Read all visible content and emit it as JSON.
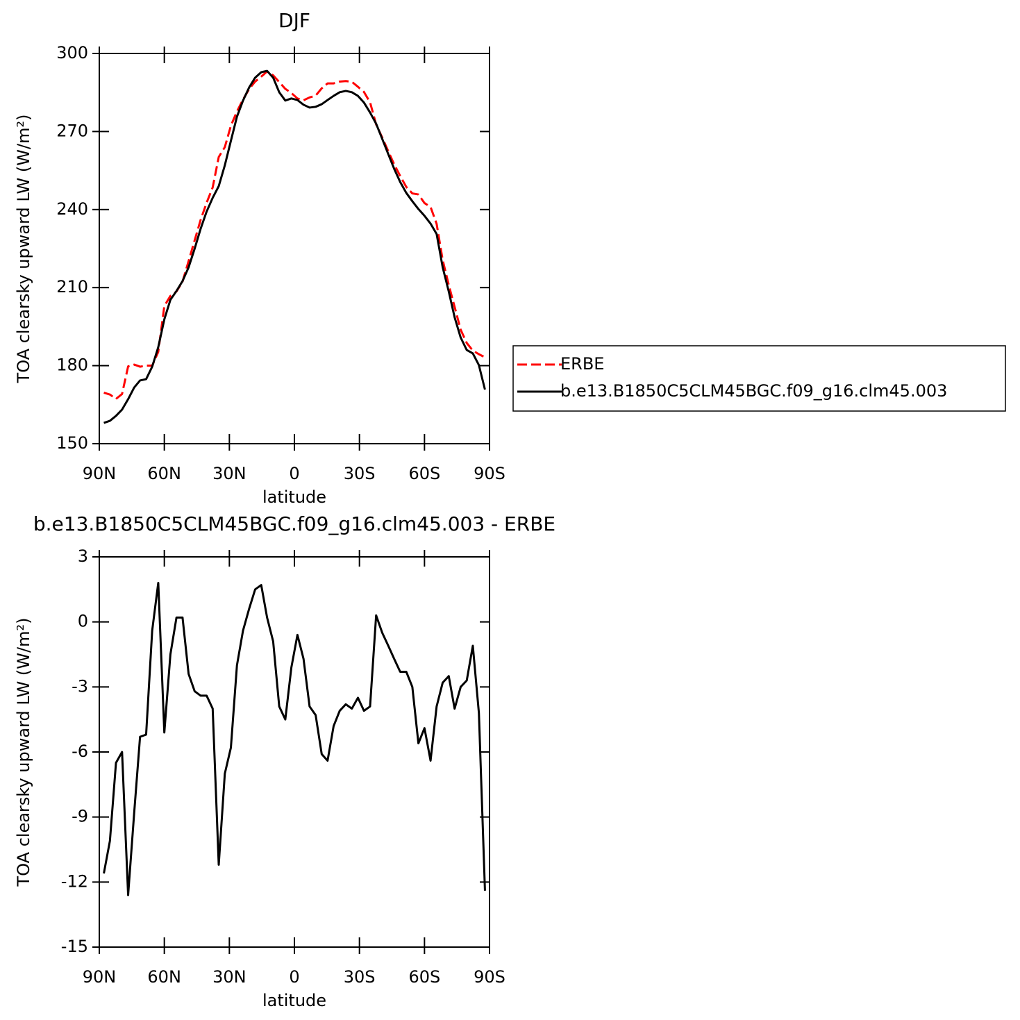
{
  "chart_data": [
    {
      "type": "line",
      "title": "DJF",
      "xlabel": "latitude",
      "ylabel": "TOA clearsky upward LW (W/m²)",
      "x": [
        87.9,
        85.1,
        82.3,
        79.5,
        76.7,
        73.9,
        71.2,
        68.4,
        65.6,
        62.8,
        60.0,
        57.2,
        54.4,
        51.6,
        48.8,
        46.0,
        43.3,
        40.5,
        37.7,
        34.9,
        32.1,
        29.3,
        26.5,
        23.7,
        20.9,
        18.1,
        15.3,
        12.6,
        9.8,
        7.0,
        4.2,
        1.4,
        -1.4,
        -4.2,
        -7.0,
        -9.8,
        -12.6,
        -15.3,
        -18.1,
        -20.9,
        -23.7,
        -26.5,
        -29.3,
        -32.1,
        -34.9,
        -37.7,
        -40.5,
        -43.3,
        -46.0,
        -48.8,
        -51.6,
        -54.4,
        -57.2,
        -60.0,
        -62.8,
        -65.6,
        -68.4,
        -71.2,
        -73.9,
        -76.7,
        -79.5,
        -82.3,
        -85.1,
        -87.9
      ],
      "series": [
        {
          "name": "ERBE",
          "color": "#ff0000",
          "linestyle": "dashed",
          "values": [
            169.6,
            168.9,
            167.2,
            169.1,
            179.7,
            180.4,
            179.6,
            180.0,
            180.0,
            185.3,
            202.9,
            206.8,
            208.5,
            212.3,
            220.2,
            228.2,
            235.9,
            242.6,
            248.5,
            260.2,
            264.0,
            272.2,
            277.7,
            282.3,
            286.3,
            289.2,
            291.1,
            293.1,
            291.6,
            289.0,
            286.4,
            284.8,
            282.7,
            282.0,
            283.1,
            283.8,
            286.6,
            288.5,
            288.5,
            289.2,
            289.4,
            289.1,
            287.2,
            285.2,
            281.2,
            272.7,
            267.7,
            262.4,
            257.4,
            252.9,
            248.7,
            246.2,
            245.8,
            242.5,
            241.0,
            234.5,
            220.6,
            211.0,
            202.6,
            193.8,
            188.7,
            185.8,
            184.4,
            183.2
          ]
        },
        {
          "name": "b.e13.B1850C5CLM45BGC.f09_g16.clm45.003",
          "color": "#000000",
          "linestyle": "solid",
          "values": [
            158.0,
            158.8,
            160.7,
            163.1,
            167.1,
            171.6,
            174.3,
            174.8,
            179.6,
            187.1,
            197.8,
            205.3,
            208.7,
            212.5,
            217.8,
            225.0,
            232.5,
            239.2,
            244.5,
            249.0,
            257.0,
            266.4,
            275.7,
            281.9,
            286.9,
            290.7,
            292.8,
            293.3,
            290.7,
            285.1,
            281.9,
            282.7,
            282.1,
            280.3,
            279.2,
            279.5,
            280.5,
            282.1,
            283.7,
            285.1,
            285.6,
            285.1,
            283.7,
            281.1,
            277.3,
            273.0,
            267.2,
            261.3,
            255.7,
            250.6,
            246.4,
            243.2,
            240.2,
            237.6,
            234.6,
            230.6,
            217.8,
            208.5,
            198.6,
            190.8,
            186.0,
            184.7,
            180.2,
            170.8
          ]
        }
      ],
      "xlim": [
        90,
        -90
      ],
      "xticks": [
        {
          "value": 90,
          "label": "90N"
        },
        {
          "value": 60,
          "label": "60N"
        },
        {
          "value": 30,
          "label": "30N"
        },
        0,
        {
          "value": -30,
          "label": "30S"
        },
        {
          "value": -60,
          "label": "60S"
        },
        {
          "value": -90,
          "label": "90S"
        }
      ],
      "ylim": [
        150,
        300
      ],
      "yticks": [
        150,
        180,
        210,
        240,
        270,
        300
      ],
      "legend": "right"
    },
    {
      "type": "line",
      "title": "b.e13.B1850C5CLM45BGC.f09_g16.clm45.003 - ERBE",
      "xlabel": "latitude",
      "ylabel": "TOA clearsky upward LW (W/m²)",
      "x": [
        87.9,
        85.1,
        82.3,
        79.5,
        76.7,
        73.9,
        71.2,
        68.4,
        65.6,
        62.8,
        60.0,
        57.2,
        54.4,
        51.6,
        48.8,
        46.0,
        43.3,
        40.5,
        37.7,
        34.9,
        32.1,
        29.3,
        26.5,
        23.7,
        20.9,
        18.1,
        15.3,
        12.6,
        9.8,
        7.0,
        4.2,
        1.4,
        -1.4,
        -4.2,
        -7.0,
        -9.8,
        -12.6,
        -15.3,
        -18.1,
        -20.9,
        -23.7,
        -26.5,
        -29.3,
        -32.1,
        -34.9,
        -37.7,
        -40.5,
        -43.3,
        -46.0,
        -48.8,
        -51.6,
        -54.4,
        -57.2,
        -60.0,
        -62.8,
        -65.6,
        -68.4,
        -71.2,
        -73.9,
        -76.7,
        -79.5,
        -82.3,
        -85.1,
        -87.9
      ],
      "series": [
        {
          "color": "#000000",
          "linestyle": "solid",
          "values": [
            -11.6,
            -10.1,
            -6.5,
            -6.0,
            -12.6,
            -8.8,
            -5.3,
            -5.2,
            -0.4,
            1.8,
            -5.1,
            -1.5,
            0.2,
            0.2,
            -2.4,
            -3.2,
            -3.4,
            -3.4,
            -4.0,
            -11.2,
            -7.0,
            -5.8,
            -2.0,
            -0.4,
            0.6,
            1.5,
            1.7,
            0.2,
            -0.9,
            -3.9,
            -4.5,
            -2.1,
            -0.6,
            -1.7,
            -3.9,
            -4.3,
            -6.1,
            -6.4,
            -4.8,
            -4.1,
            -3.8,
            -4.0,
            -3.5,
            -4.1,
            -3.9,
            0.3,
            -0.5,
            -1.1,
            -1.7,
            -2.3,
            -2.3,
            -3.0,
            -5.6,
            -4.9,
            -6.4,
            -3.9,
            -2.8,
            -2.5,
            -4.0,
            -3.0,
            -2.7,
            -1.1,
            -4.2,
            -12.4
          ]
        }
      ],
      "xlim": [
        90,
        -90
      ],
      "xticks": [
        {
          "value": 90,
          "label": "90N"
        },
        {
          "value": 60,
          "label": "60N"
        },
        {
          "value": 30,
          "label": "30N"
        },
        0,
        {
          "value": -30,
          "label": "30S"
        },
        {
          "value": -60,
          "label": "60S"
        },
        {
          "value": -90,
          "label": "90S"
        }
      ],
      "ylim": [
        -15,
        3
      ],
      "yticks": [
        -15,
        -12,
        -9,
        -6,
        -3,
        0,
        3
      ]
    }
  ]
}
